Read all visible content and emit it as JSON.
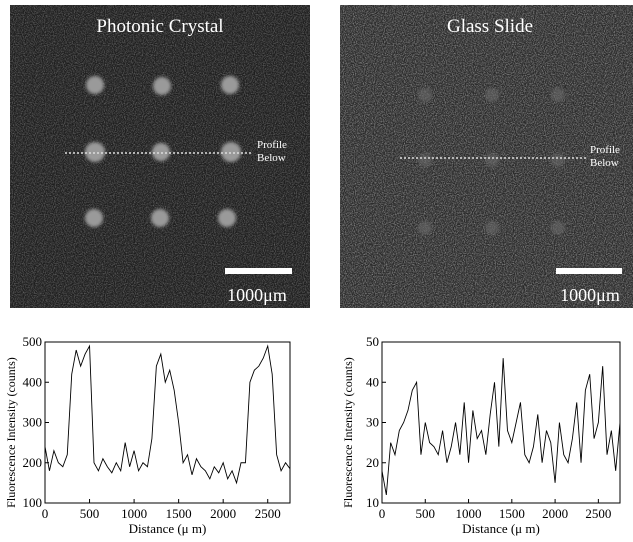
{
  "images": [
    {
      "title": "Photonic Crystal",
      "annotation": [
        "Profile",
        "Below"
      ],
      "scale_bar": "1000μm"
    },
    {
      "title": "Glass Slide",
      "annotation": [
        "Profile",
        "Below"
      ],
      "scale_bar": "1000μm"
    }
  ],
  "chart_data": [
    {
      "type": "line",
      "xlabel": "Distance (μ m)",
      "ylabel": "Fluorescence Intensity (counts)",
      "color": "#000000",
      "x": [
        0,
        50,
        100,
        150,
        200,
        250,
        300,
        350,
        400,
        450,
        500,
        550,
        600,
        650,
        700,
        750,
        800,
        850,
        900,
        950,
        1000,
        1050,
        1100,
        1150,
        1200,
        1250,
        1300,
        1350,
        1400,
        1450,
        1500,
        1550,
        1600,
        1650,
        1700,
        1750,
        1800,
        1850,
        1900,
        1950,
        2000,
        2050,
        2100,
        2150,
        2200,
        2250,
        2300,
        2350,
        2400,
        2450,
        2500,
        2550,
        2600,
        2650,
        2700,
        2750
      ],
      "values": [
        240,
        180,
        230,
        200,
        190,
        220,
        420,
        480,
        440,
        470,
        490,
        200,
        180,
        210,
        190,
        175,
        200,
        180,
        250,
        190,
        230,
        180,
        200,
        190,
        260,
        440,
        470,
        400,
        430,
        380,
        300,
        200,
        220,
        170,
        210,
        190,
        180,
        160,
        190,
        175,
        200,
        160,
        180,
        150,
        200,
        200,
        400,
        430,
        440,
        460,
        490,
        420,
        220,
        180,
        200,
        185
      ],
      "xlim": [
        0,
        2750
      ],
      "xticks": [
        0,
        500,
        1000,
        1500,
        2000,
        2500
      ],
      "ylim": [
        100,
        500
      ],
      "yticks": [
        100,
        200,
        300,
        400,
        500
      ]
    },
    {
      "type": "line",
      "xlabel": "Distance (μ m)",
      "ylabel": "Fluorescence Intensity (counts)",
      "color": "#000000",
      "x": [
        0,
        50,
        100,
        150,
        200,
        250,
        300,
        350,
        400,
        450,
        500,
        550,
        600,
        650,
        700,
        750,
        800,
        850,
        900,
        950,
        1000,
        1050,
        1100,
        1150,
        1200,
        1250,
        1300,
        1350,
        1400,
        1450,
        1500,
        1550,
        1600,
        1650,
        1700,
        1750,
        1800,
        1850,
        1900,
        1950,
        2000,
        2050,
        2100,
        2150,
        2200,
        2250,
        2300,
        2350,
        2400,
        2450,
        2500,
        2550,
        2600,
        2650,
        2700,
        2750
      ],
      "values": [
        18,
        12,
        25,
        22,
        28,
        30,
        33,
        38,
        40,
        22,
        30,
        25,
        24,
        22,
        28,
        20,
        24,
        30,
        22,
        35,
        20,
        33,
        26,
        28,
        22,
        32,
        40,
        24,
        46,
        28,
        25,
        30,
        35,
        22,
        20,
        24,
        32,
        20,
        28,
        25,
        15,
        30,
        22,
        20,
        26,
        35,
        20,
        38,
        42,
        26,
        30,
        44,
        22,
        28,
        18,
        30
      ],
      "xlim": [
        0,
        2750
      ],
      "xticks": [
        0,
        500,
        1000,
        1500,
        2000,
        2500
      ],
      "ylim": [
        10,
        50
      ],
      "yticks": [
        10,
        20,
        30,
        40,
        50
      ]
    }
  ]
}
